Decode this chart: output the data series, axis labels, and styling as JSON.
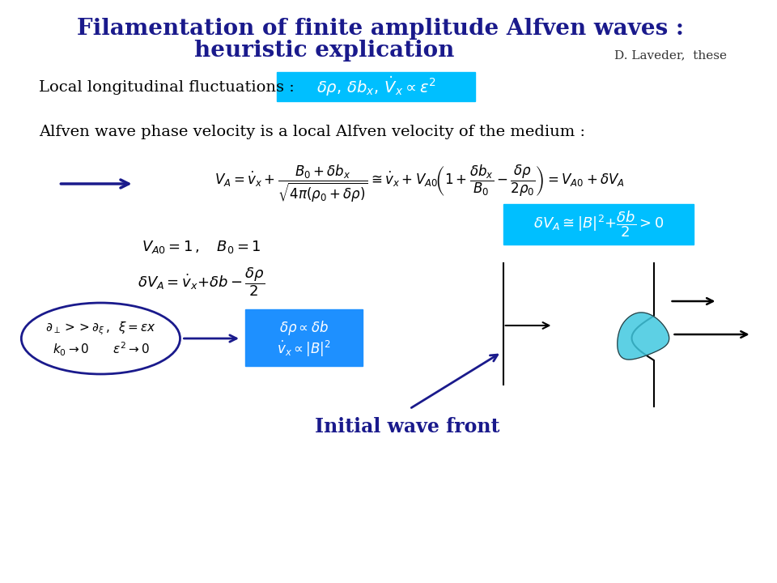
{
  "title_line1": "Filamentation of finite amplitude Alfven waves :",
  "title_line2": "heuristic explication",
  "title_color": "#1a1a8c",
  "title_fontsize": 20,
  "subtitle_ref": "D. Laveder,  these",
  "subtitle_color": "#333333",
  "subtitle_fontsize": 11,
  "bg_color": "#ffffff",
  "text_color": "#000000",
  "blue_box_color": "#00bfff",
  "dark_blue": "#1a1a8c",
  "black": "#000000",
  "cyan_fill": "#40c8e0",
  "blue_box2_color": "#1e90ff",
  "line1_label": "Local longitudinal fluctuations :",
  "line2_label": "Alfven wave phase velocity is a local Alfven velocity of the medium :",
  "initial_wave_front": "Initial wave front"
}
